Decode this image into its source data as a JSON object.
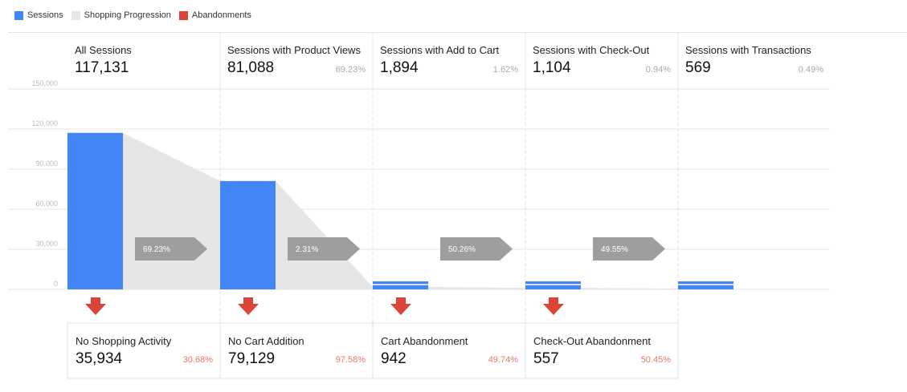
{
  "legend": [
    {
      "label": "Sessions",
      "color": "#4285f4"
    },
    {
      "label": "Shopping Progression",
      "color": "#e6e6e6"
    },
    {
      "label": "Abandonments",
      "color": "#db4437"
    }
  ],
  "chart_data": {
    "type": "bar",
    "ylim": [
      0,
      150000
    ],
    "yticks": [
      "150,000",
      "120,000",
      "90,000",
      "60,000",
      "30,000",
      "0"
    ],
    "yvalues": [
      150000,
      120000,
      90000,
      60000,
      30000,
      0
    ],
    "stages": [
      {
        "title": "All Sessions",
        "count_label": "117,131",
        "value": 117131,
        "pct": ""
      },
      {
        "title": "Sessions with Product Views",
        "count_label": "81,088",
        "value": 81088,
        "pct": "69.23%"
      },
      {
        "title": "Sessions with Add to Cart",
        "count_label": "1,894",
        "value": 1894,
        "pct": "1.62%"
      },
      {
        "title": "Sessions with Check-Out",
        "count_label": "1,104",
        "value": 1104,
        "pct": "0.94%"
      },
      {
        "title": "Sessions with Transactions",
        "count_label": "569",
        "value": 569,
        "pct": "0.49%"
      }
    ],
    "progression": [
      "69.23%",
      "2.31%",
      "50.26%",
      "49.55%"
    ],
    "abandonments": [
      {
        "title": "No Shopping Activity",
        "count_label": "35,934",
        "value": 35934,
        "pct": "30.68%"
      },
      {
        "title": "No Cart Addition",
        "count_label": "79,129",
        "value": 79129,
        "pct": "97.58%"
      },
      {
        "title": "Cart Abandonment",
        "count_label": "942",
        "value": 942,
        "pct": "49.74%"
      },
      {
        "title": "Check-Out Abandonment",
        "count_label": "557",
        "value": 557,
        "pct": "50.45%"
      }
    ],
    "colors": {
      "sessions": "#4285f4",
      "progression": "#e6e6e6",
      "abandonment": "#db4437",
      "progression_arrow": "#9e9e9e"
    }
  }
}
